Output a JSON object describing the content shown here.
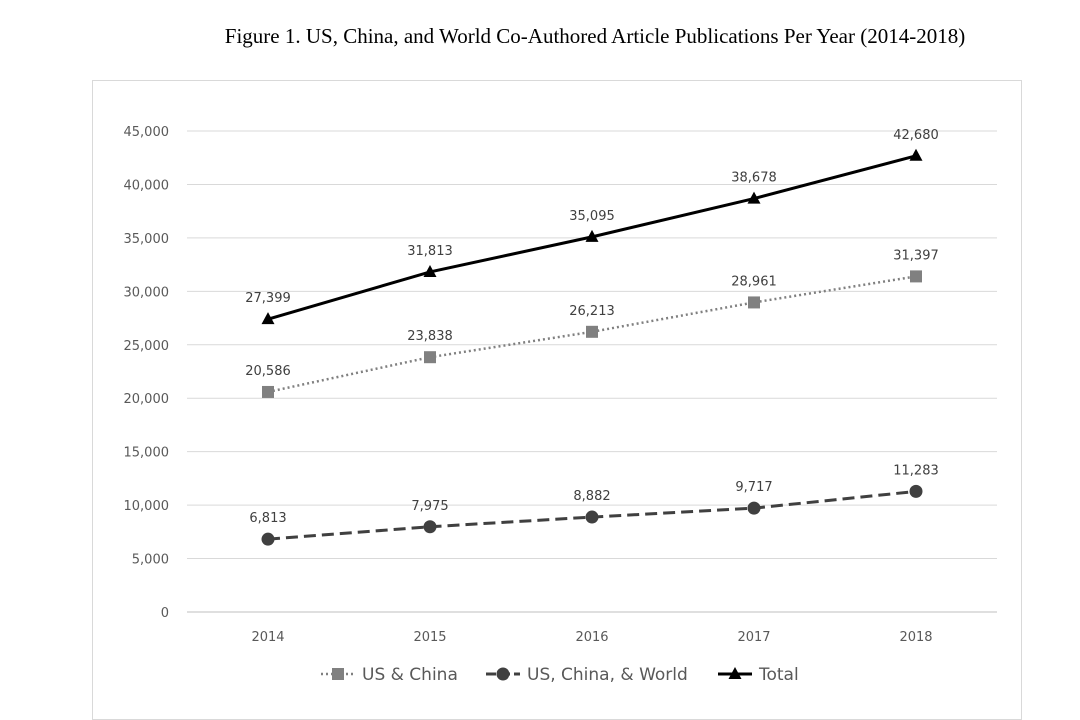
{
  "figure_title": "Figure 1. US, China, and World Co-Authored Article Publications Per Year (2014-2018)",
  "chart_data": {
    "type": "line",
    "title": "Figure 1. US, China, and World Co-Authored Article Publications Per Year (2014-2018)",
    "xlabel": "",
    "ylabel": "",
    "categories": [
      "2014",
      "2015",
      "2016",
      "2017",
      "2018"
    ],
    "ylim": [
      0,
      45000
    ],
    "yticks": [
      0,
      5000,
      10000,
      15000,
      20000,
      25000,
      30000,
      35000,
      40000,
      45000
    ],
    "ytick_labels": [
      "0",
      "5,000",
      "10,000",
      "15,000",
      "20,000",
      "25,000",
      "30,000",
      "35,000",
      "40,000",
      "45,000"
    ],
    "grid": true,
    "legend_position": "bottom",
    "series": [
      {
        "name": "US & China",
        "values": [
          20586,
          23838,
          26213,
          28961,
          31397
        ],
        "labels": [
          "20,586",
          "23,838",
          "26,213",
          "28,961",
          "31,397"
        ],
        "color": "#808080",
        "line_style": "dotted",
        "marker": "square"
      },
      {
        "name": "US, China, & World",
        "values": [
          6813,
          7975,
          8882,
          9717,
          11283
        ],
        "labels": [
          "6,813",
          "7,975",
          "8,882",
          "9,717",
          "11,283"
        ],
        "color": "#404040",
        "line_style": "dashed",
        "marker": "circle"
      },
      {
        "name": "Total",
        "values": [
          27399,
          31813,
          35095,
          38678,
          42680
        ],
        "labels": [
          "27,399",
          "31,813",
          "35,095",
          "38,678",
          "42,680"
        ],
        "color": "#000000",
        "line_style": "solid",
        "marker": "triangle"
      }
    ]
  }
}
